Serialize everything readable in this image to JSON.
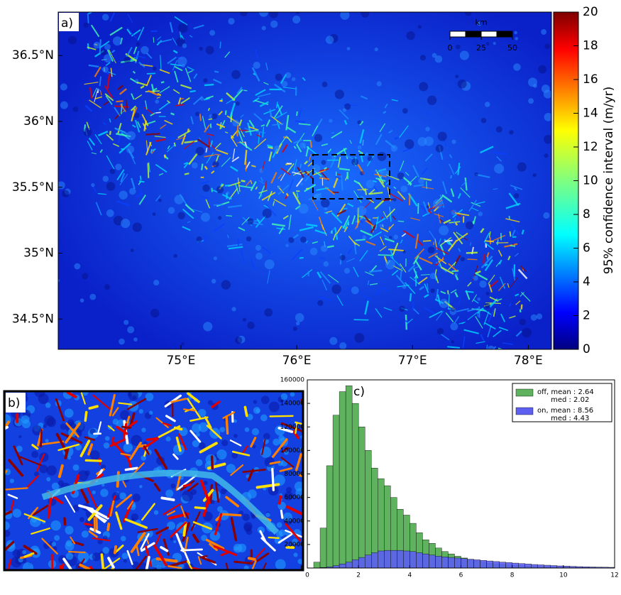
{
  "panel_a": {
    "label": "a)",
    "lat_lim": [
      34.27,
      36.83
    ],
    "lat_ticks": [
      {
        "value": 36.5,
        "label": "36.5°N"
      },
      {
        "value": 36,
        "label": "36°N"
      },
      {
        "value": 35.5,
        "label": "35.5°N"
      },
      {
        "value": 35,
        "label": "35°N"
      },
      {
        "value": 34.5,
        "label": "34.5°N"
      }
    ],
    "lon_lim": [
      73.94,
      78.2
    ],
    "lon_ticks": [
      {
        "value": 75,
        "label": "75°E"
      },
      {
        "value": 76,
        "label": "76°E"
      },
      {
        "value": 77,
        "label": "77°E"
      },
      {
        "value": 78,
        "label": "78°E"
      }
    ],
    "scale_bar": {
      "unit": "km",
      "ticks": [
        0,
        25,
        50
      ]
    },
    "colorbar": {
      "label": "95% confidence interval (m/yr)",
      "lim": [
        0,
        20
      ],
      "ticks": [
        0,
        2,
        4,
        6,
        8,
        10,
        12,
        14,
        16,
        18,
        20
      ]
    }
  },
  "panel_b": {
    "label": "b)"
  },
  "chart_data": {
    "type": "histogram",
    "label": "c)",
    "bins": [
      0,
      0.25,
      0.5,
      0.75,
      1,
      1.25,
      1.5,
      1.75,
      2,
      2.25,
      2.5,
      2.75,
      3,
      3.25,
      3.5,
      3.75,
      4,
      4.25,
      4.5,
      4.75,
      5,
      5.25,
      5.5,
      5.75,
      6,
      6.25,
      6.5,
      6.75,
      7,
      7.25,
      7.5,
      7.75,
      8,
      8.25,
      8.5,
      8.75,
      9,
      9.25,
      9.5,
      9.75,
      10,
      10.25,
      10.5,
      10.75,
      11,
      11.25,
      11.5,
      11.75,
      12
    ],
    "series": [
      {
        "name": "off, mean : 2.64\n      med : 2.02",
        "color": "#5fb35f",
        "values": [
          0,
          5000,
          34000,
          87000,
          130000,
          150000,
          155000,
          140000,
          120000,
          100000,
          85000,
          76000,
          70000,
          60000,
          50000,
          45000,
          38000,
          30000,
          24000,
          21000,
          17000,
          14000,
          12000,
          10000,
          8500,
          7000,
          6000,
          5000,
          4200,
          3600,
          3000,
          2600,
          2200,
          1900,
          1600,
          1400,
          1200,
          1000,
          900,
          800,
          700,
          600,
          500,
          450,
          400,
          350,
          300,
          250
        ]
      },
      {
        "name": "on, mean : 8.56\n      med : 4.43",
        "color": "#5c5ff0",
        "values": [
          0,
          100,
          500,
          1000,
          2000,
          3500,
          5000,
          7000,
          9000,
          11000,
          13000,
          14500,
          15000,
          15000,
          15000,
          14500,
          14000,
          13000,
          12000,
          11000,
          10000,
          9500,
          9000,
          8500,
          8000,
          7500,
          7000,
          6500,
          6000,
          5500,
          5000,
          4600,
          4200,
          3800,
          3400,
          3000,
          2700,
          2400,
          2100,
          1800,
          1600,
          1400,
          1200,
          1000,
          900,
          800,
          700,
          600
        ]
      }
    ],
    "xlim": [
      0,
      12
    ],
    "xticks": [
      0,
      2,
      4,
      6,
      8,
      10,
      12
    ],
    "ylim": [
      0,
      160000
    ],
    "yticks": [
      0,
      20000,
      40000,
      60000,
      80000,
      100000,
      120000,
      140000,
      160000
    ],
    "legend": "upper right"
  }
}
